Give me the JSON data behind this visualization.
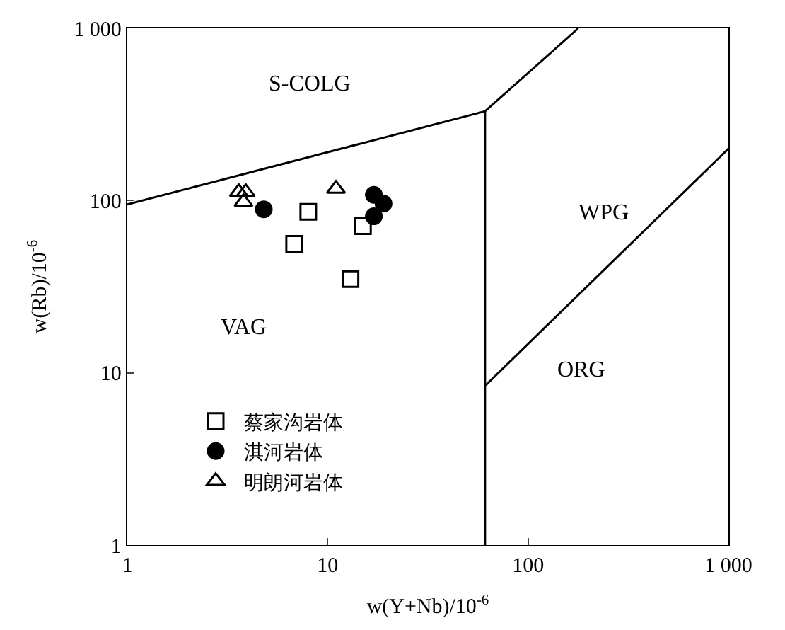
{
  "chart_data": {
    "type": "scatter",
    "xlabel": "w(Y+Nb)/10$^{-6}$",
    "ylabel": "w(Rb)/10$^{-6}$",
    "log": "xy",
    "xlim": [
      1,
      1000
    ],
    "ylim": [
      1,
      1000
    ],
    "xticks": [
      1,
      10,
      100,
      {
        "value": 1000,
        "label": "1 000"
      }
    ],
    "yticks": [
      1,
      10,
      100,
      {
        "value": 1000,
        "label": "1 000"
      }
    ],
    "legend": "bottom left",
    "series": [
      {
        "name": "蔡家沟岩体",
        "color": "#000000",
        "marker": "square",
        "x": [
          8.0,
          6.8,
          15,
          13
        ],
        "values": [
          86,
          56,
          71,
          35
        ]
      },
      {
        "name": "淇河岩体",
        "color": "#000000",
        "marker": "circle",
        "x": [
          4.8,
          17,
          19,
          17
        ],
        "values": [
          89,
          108,
          96,
          81
        ]
      },
      {
        "name": "明朗河岩体",
        "color": "#000000",
        "marker": "triangle",
        "x": [
          3.6,
          3.9,
          3.8,
          11
        ],
        "values": [
          112,
          112,
          98,
          117
        ]
      },
      {
        "type": "line",
        "color": "#000000",
        "marker": "none",
        "x": [
          1,
          61,
          178
        ],
        "values": [
          95,
          330,
          1000
        ]
      },
      {
        "type": "line",
        "color": "#000000",
        "marker": "none",
        "x": [
          61,
          61
        ],
        "values": [
          330,
          1
        ]
      },
      {
        "type": "line",
        "color": "#000000",
        "marker": "none",
        "x": [
          61,
          1000
        ],
        "values": [
          8.4,
          200
        ]
      }
    ],
    "annotations": [
      "S-COLG",
      "WPG",
      "VAG",
      "ORG"
    ]
  }
}
